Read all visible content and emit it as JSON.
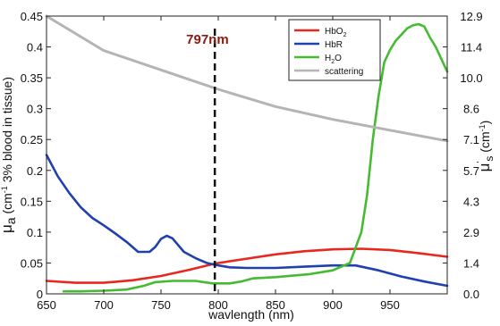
{
  "chart_data": {
    "type": "line",
    "xlabel": "wavlength (nm)",
    "ylabel": {
      "main": "μ",
      "sub": "a",
      "rest": " (cm",
      "sup": "-1",
      "tail": " 3% blood in tissue)"
    },
    "y2label": {
      "main": "μ",
      "sup": "'",
      "sub": "s",
      "rest": " (cm",
      "sup2": "-1",
      "tail": ")"
    },
    "xlim": [
      650,
      1000
    ],
    "ylim": [
      0,
      0.45
    ],
    "y2lim": [
      0,
      12.9
    ],
    "x_ticks": [
      650,
      700,
      750,
      800,
      850,
      900,
      950
    ],
    "y_ticks": [
      "0",
      "0.05",
      "0.1",
      "0.15",
      "0.2",
      "0.25",
      "0.3",
      "0.35",
      "0.4",
      "0.45"
    ],
    "y2_ticks": [
      "0.0",
      "1.4",
      "2.9",
      "4.3",
      "5.7",
      "7.1",
      "8.6",
      "10.0",
      "11.4",
      "12.9"
    ],
    "grid": false,
    "legend_position": "top-right",
    "annotation": {
      "x": 797,
      "label": "797nm"
    },
    "series": [
      {
        "name": "HbO2",
        "display": {
          "base": "HbO",
          "sub": "2"
        },
        "color": "#e8281e",
        "axis": "left",
        "x": [
          650,
          675,
          700,
          725,
          750,
          775,
          797,
          825,
          850,
          875,
          900,
          925,
          950,
          975,
          1000
        ],
        "values": [
          0.021,
          0.018,
          0.018,
          0.022,
          0.029,
          0.039,
          0.049,
          0.057,
          0.064,
          0.069,
          0.072,
          0.073,
          0.071,
          0.066,
          0.06
        ]
      },
      {
        "name": "HbR",
        "display": {
          "base": "HbR"
        },
        "color": "#2040b0",
        "axis": "left",
        "x": [
          650,
          660,
          670,
          680,
          690,
          700,
          710,
          720,
          730,
          740,
          745,
          750,
          755,
          760,
          765,
          770,
          780,
          790,
          797,
          810,
          825,
          850,
          875,
          900,
          920,
          940,
          960,
          980,
          1000
        ],
        "values": [
          0.225,
          0.19,
          0.163,
          0.14,
          0.123,
          0.111,
          0.098,
          0.084,
          0.068,
          0.068,
          0.076,
          0.089,
          0.094,
          0.09,
          0.079,
          0.068,
          0.058,
          0.05,
          0.047,
          0.043,
          0.042,
          0.042,
          0.044,
          0.046,
          0.046,
          0.038,
          0.028,
          0.02,
          0.013
        ]
      },
      {
        "name": "H2O",
        "display": {
          "base": "H",
          "sub": "2",
          "tail": "O"
        },
        "color": "#44bb30",
        "axis": "left",
        "x": [
          665,
          680,
          700,
          720,
          735,
          745,
          760,
          780,
          795,
          810,
          820,
          830,
          850,
          880,
          900,
          915,
          925,
          930,
          935,
          940,
          945,
          950,
          955,
          960,
          965,
          970,
          975,
          980,
          985,
          990,
          995,
          1000
        ],
        "values": [
          0.004,
          0.004,
          0.005,
          0.007,
          0.013,
          0.019,
          0.021,
          0.021,
          0.017,
          0.017,
          0.02,
          0.025,
          0.027,
          0.032,
          0.038,
          0.05,
          0.1,
          0.16,
          0.25,
          0.32,
          0.375,
          0.395,
          0.41,
          0.42,
          0.43,
          0.435,
          0.437,
          0.433,
          0.415,
          0.4,
          0.38,
          0.36
        ]
      },
      {
        "name": "scattering",
        "display": {
          "base": "scattering"
        },
        "color": "#b4b4b4",
        "axis": "right",
        "x": [
          650,
          700,
          750,
          800,
          850,
          900,
          950,
          1000
        ],
        "values": [
          12.9,
          11.3,
          10.4,
          9.5,
          8.7,
          8.1,
          7.6,
          7.1
        ]
      }
    ]
  }
}
